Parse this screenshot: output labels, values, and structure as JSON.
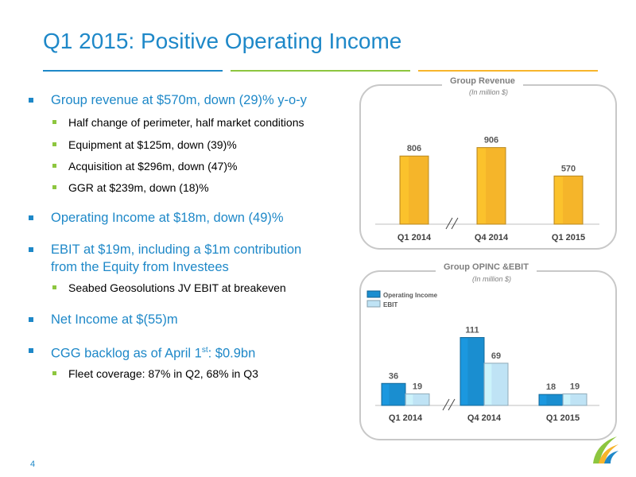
{
  "title": "Q1 2015: Positive Operating Income",
  "page_number": "4",
  "bullets": {
    "b1": "Group revenue at $570m, down (29)% y-o-y",
    "b1_subs": [
      "Half change of perimeter, half market conditions",
      "Equipment at $125m, down (39)%",
      "Acquisition at $296m, down (47)%",
      "GGR at $239m, down (18)%"
    ],
    "b2": "Operating Income at $18m, down (49)%",
    "b3_line1": "EBIT at $19m, including a $1m contribution",
    "b3_line2": "from the Equity from Investees",
    "b3_subs": [
      "Seabed Geosolutions JV EBIT at breakeven"
    ],
    "b4": "Net Income at $(55)m",
    "b5_pre": "CGG backlog as of April 1",
    "b5_sup": "st",
    "b5_post": ": $0.9bn",
    "b5_subs": [
      "Fleet coverage: 87% in Q2, 68% in Q3"
    ]
  },
  "colors": {
    "blue": "#1e88c8",
    "green": "#8dc63f",
    "orange": "#f7b52c",
    "revenue_bar": "#f5b52a",
    "opinc_bar": "#1a8ed0",
    "ebit_bar": "#bfe3f5"
  },
  "chart_data": [
    {
      "type": "bar",
      "title": "Group Revenue",
      "subtitle": "(In million $)",
      "categories": [
        "Q1 2014",
        "Q4 2014",
        "Q1 2015"
      ],
      "series": [
        {
          "values": [
            806,
            906,
            570
          ]
        }
      ],
      "ylim": [
        0,
        1000
      ],
      "axis_break": "between Q1 2014 and Q4 2014",
      "grid": false
    },
    {
      "type": "bar",
      "title": "Group OPINC &EBIT",
      "subtitle": "(In million $)",
      "categories": [
        "Q1 2014",
        "Q4 2014",
        "Q1 2015"
      ],
      "series": [
        {
          "name": "Operating Income",
          "values": [
            36,
            111,
            18
          ]
        },
        {
          "name": "EBIT",
          "values": [
            19,
            69,
            19
          ]
        }
      ],
      "ylim": [
        0,
        130
      ],
      "legend": "top-left",
      "axis_break": "between Q1 2014 and Q4 2014",
      "grid": false
    }
  ]
}
